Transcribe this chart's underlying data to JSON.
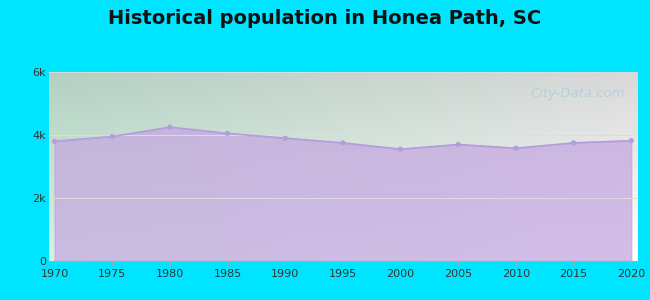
{
  "title": "Historical population in Honea Path, SC",
  "years": [
    1970,
    1975,
    1980,
    1985,
    1990,
    1995,
    2000,
    2005,
    2010,
    2015,
    2020
  ],
  "population": [
    3800,
    3950,
    4250,
    4050,
    3900,
    3750,
    3550,
    3700,
    3580,
    3750,
    3820
  ],
  "ylim": [
    0,
    6000
  ],
  "yticks": [
    0,
    2000,
    4000,
    6000
  ],
  "ytick_labels": [
    "0",
    "2k",
    "4k",
    "6k"
  ],
  "xticks": [
    1970,
    1975,
    1980,
    1985,
    1990,
    1995,
    2000,
    2005,
    2010,
    2015,
    2020
  ],
  "line_color": "#b39ddb",
  "fill_color": "#c5a8e0",
  "fill_alpha": 0.75,
  "marker_color": "#b39ddb",
  "bg_outer": "#00e5ff",
  "title_fontsize": 14,
  "watermark_text": "City-Data.com",
  "watermark_color": "#90c4d4",
  "watermark_alpha": 0.45
}
